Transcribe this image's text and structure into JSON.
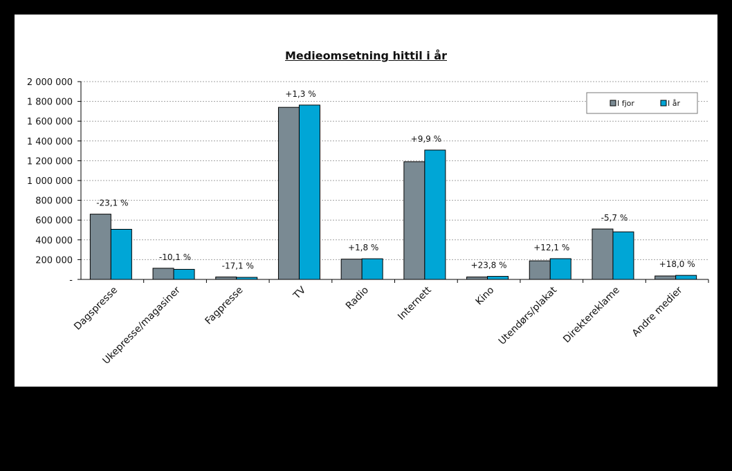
{
  "chart_data": {
    "type": "bar",
    "title": "Medieomsetning hittil i år",
    "categories": [
      "Dagspresse",
      "Ukepresse/magasiner",
      "Fagpresse",
      "TV",
      "Radio",
      "Internett",
      "Kino",
      "Utendørs/plakat",
      "Direktereklame",
      "Andre medier"
    ],
    "series": [
      {
        "name": "I fjor",
        "color": "#7a8a93",
        "values": [
          660000,
          113000,
          25000,
          1740000,
          205000,
          1190000,
          25000,
          188000,
          510000,
          35000
        ]
      },
      {
        "name": "I år",
        "color": "#00a6d6",
        "values": [
          507000,
          102000,
          21000,
          1763000,
          209000,
          1308000,
          31000,
          210000,
          481000,
          41000
        ]
      }
    ],
    "change_labels": [
      "-23,1 %",
      "-10,1 %",
      "-17,1 %",
      "+1,3 %",
      "+1,8 %",
      "+9,9 %",
      "+23,8 %",
      "+12,1 %",
      "-5,7 %",
      "+18,0 %"
    ],
    "ylim": [
      0,
      2000000
    ],
    "yticks": [
      0,
      200000,
      400000,
      600000,
      800000,
      1000000,
      1200000,
      1400000,
      1600000,
      1800000,
      2000000
    ],
    "ytick_labels": [
      "-",
      "200 000",
      "400 000",
      "600 000",
      "800 000",
      "1 000 000",
      "1 200 000",
      "1 400 000",
      "1 600 000",
      "1 800 000",
      "2 000 000"
    ],
    "grid": true,
    "legend_position": "top-right"
  }
}
